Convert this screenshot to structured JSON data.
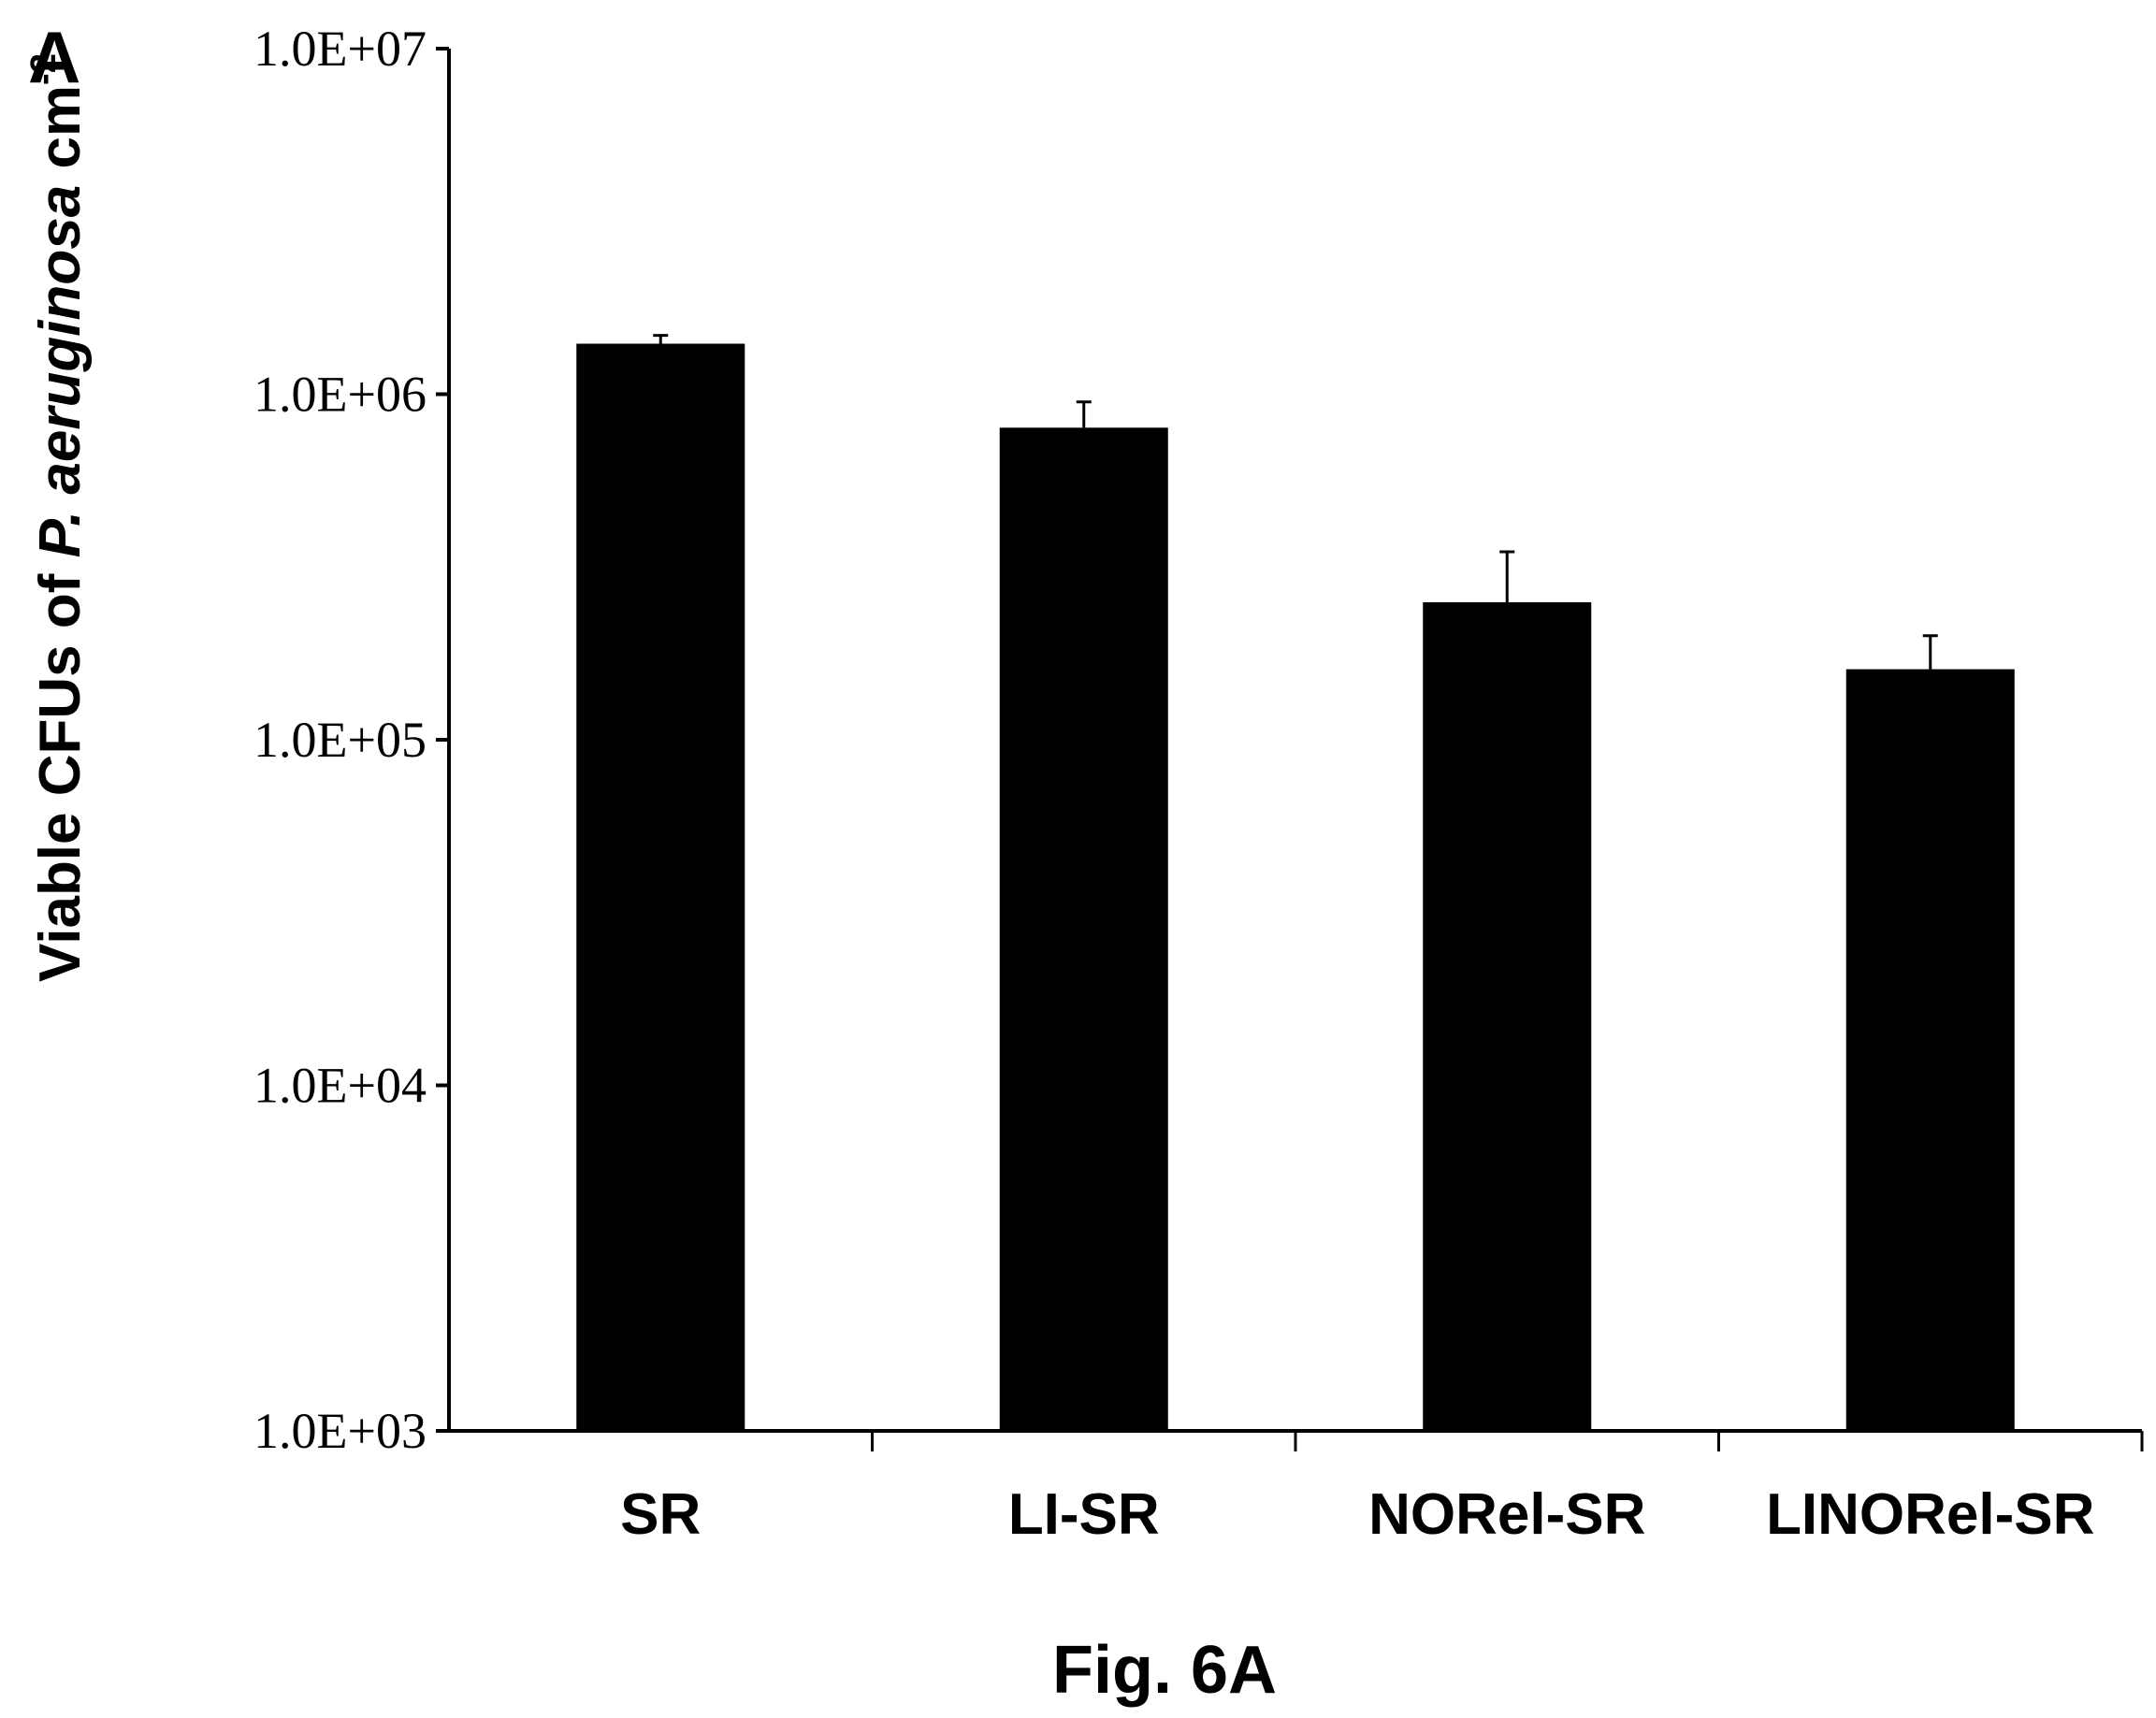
{
  "panel_label": "A",
  "figure_caption": "Fig. 6A",
  "chart_data": {
    "type": "bar",
    "scale": "log",
    "categories": [
      "SR",
      "LI-SR",
      "NORel-SR",
      "LINORel-SR"
    ],
    "values": [
      1400000,
      800000,
      250000,
      160000
    ],
    "errors": [
      80000,
      150000,
      100000,
      40000
    ],
    "ylabel": {
      "prefix": "Viable  CFUs of ",
      "italic": "P. aeruginosa",
      "suffix": " cm",
      "superscript": "-2"
    },
    "ylim": [
      1000,
      10000000
    ],
    "yticks": [
      1000,
      10000,
      100000,
      1000000,
      10000000
    ],
    "ytick_labels": [
      "1.0E+03",
      "1.0E+04",
      "1.0E+05",
      "1.0E+06",
      "1.0E+07"
    ],
    "bar_color": "#000000",
    "grid": false,
    "legend": "none"
  }
}
